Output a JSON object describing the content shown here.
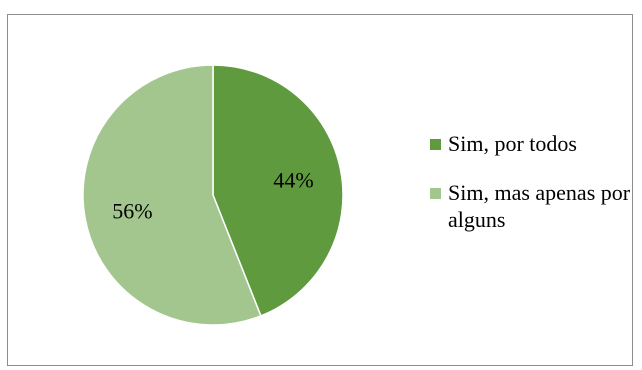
{
  "chart_data": {
    "type": "pie",
    "title": "",
    "slices": [
      {
        "name": "Sim, por todos",
        "value": 44,
        "label": "44%",
        "color": "#5f9a3e"
      },
      {
        "name": "Sim, mas apenas por alguns",
        "value": 56,
        "label": "56%",
        "color": "#a3c68f"
      }
    ],
    "legend": {
      "placement": "right"
    }
  }
}
